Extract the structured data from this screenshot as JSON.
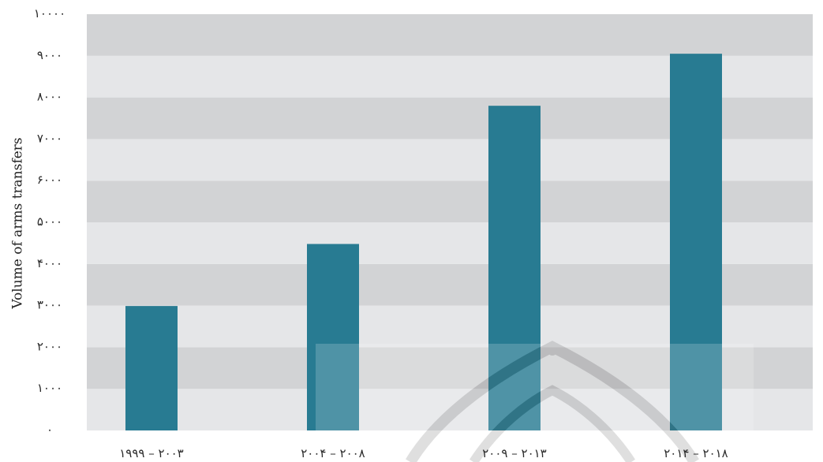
{
  "chart_data": {
    "type": "bar",
    "title": "",
    "xlabel": "",
    "ylabel": "Volume of arms transfers",
    "categories": [
      "۱۹۹۹ – ۲۰۰۳",
      "۲۰۰۴ – ۲۰۰۸",
      "۲۰۰۹ – ۲۰۱۳",
      "۲۰۱۴ – ۲۰۱۸"
    ],
    "values": [
      2990,
      4480,
      7800,
      9050
    ],
    "ylim": [
      0,
      10000
    ],
    "yticks": [
      0,
      1000,
      2000,
      3000,
      4000,
      5000,
      6000,
      7000,
      8000,
      9000,
      10000
    ],
    "ytick_labels": [
      "۰",
      "۱۰۰۰",
      "۲۰۰۰",
      "۳۰۰۰",
      "۴۰۰۰",
      "۵۰۰۰",
      "۶۰۰۰",
      "۷۰۰۰",
      "۸۰۰۰",
      "۹۰۰۰",
      "۱۰۰۰۰"
    ],
    "grid": "alternating horizontal bands",
    "legend": "none",
    "colors": {
      "bar": "#287b92",
      "band_dark": "#d2d3d5",
      "band_light": "#e5e6e8",
      "watermark": "#ffffff"
    }
  }
}
